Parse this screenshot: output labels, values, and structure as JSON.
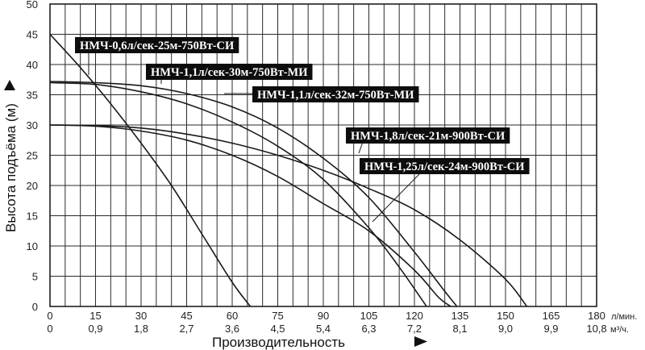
{
  "chart_data": {
    "type": "line",
    "xlabel": "Производительность",
    "ylabel": "Высота подъёма (м)",
    "x_ticks_primary": [
      "0",
      "15",
      "30",
      "45",
      "60",
      "75",
      "90",
      "105",
      "120",
      "135",
      "150",
      "165",
      "180"
    ],
    "x_unit_primary": "л/мин.",
    "x_ticks_secondary": [
      "0",
      "0,9",
      "1,8",
      "2,7",
      "3,6",
      "4,5",
      "5,4",
      "6,3",
      "7,2",
      "8,1",
      "9,0",
      "9,9",
      "10,8"
    ],
    "x_unit_secondary": "м³/ч.",
    "y_ticks": [
      "0",
      "5",
      "10",
      "15",
      "20",
      "25",
      "30",
      "35",
      "40",
      "45",
      "50"
    ],
    "xlim": [
      0,
      180
    ],
    "ylim": [
      0,
      50
    ],
    "grid": true,
    "series": [
      {
        "name": "НМЧ-0,6л/сек-25м-750Вт-СИ",
        "x": [
          0,
          10,
          20,
          30,
          40,
          50,
          60,
          66
        ],
        "y": [
          45,
          39.5,
          33.5,
          27,
          20,
          12,
          4,
          0
        ]
      },
      {
        "name": "НМЧ-1,1л/сек-30м-750Вт-МИ",
        "x": [
          0,
          15,
          30,
          45,
          60,
          75,
          90,
          105,
          115,
          124
        ],
        "y": [
          37,
          36.7,
          35.5,
          33.5,
          30.5,
          26.5,
          21,
          13,
          6.5,
          0
        ]
      },
      {
        "name": "НМЧ-1,1л/сек-32м-750Вт-МИ",
        "x": [
          0,
          15,
          30,
          45,
          60,
          75,
          90,
          105,
          120,
          130,
          134
        ],
        "y": [
          37.2,
          37,
          36.5,
          35.2,
          33,
          29.5,
          24.5,
          18,
          9,
          2.5,
          0
        ]
      },
      {
        "name": "НМЧ-1,8л/сек-21м-900Вт-СИ",
        "x": [
          0,
          15,
          30,
          45,
          60,
          75,
          90,
          105,
          120,
          135,
          150,
          157
        ],
        "y": [
          30,
          29.9,
          29.5,
          28.5,
          27,
          25,
          22.5,
          19.5,
          16,
          11,
          4.5,
          0
        ]
      },
      {
        "name": "НМЧ-1,25л/сек-24м-900Вт-СИ",
        "x": [
          0,
          15,
          30,
          45,
          60,
          75,
          90,
          105,
          120,
          128,
          132
        ],
        "y": [
          30,
          29.8,
          29,
          27.5,
          25,
          21.5,
          17,
          12.5,
          6,
          1.5,
          0
        ]
      }
    ]
  },
  "colors": {
    "line": "#1a1a1a",
    "grid": "#2a2a2a",
    "callout_bg": "#0d0d0d",
    "callout_text": "#ffffff"
  }
}
